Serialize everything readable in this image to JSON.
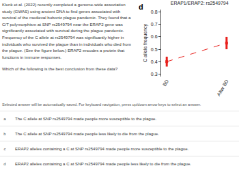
{
  "question": {
    "paragraphs": [
      "Klunk et al. (2022) recently completed a genome-wide association study (GWAS) using ancient DNA to find genes associated with survival of the medieval bubonic plague pandemic. They found that a C/T polymorphism at SNP rs2549794 near the ERAP2 gene was significantly associated with survival during the plague pandemic. Frequency of the C allele at rs2549794 was significantly higher in individuals who survived the plague than in individuals who died from the plague. (See the figure below.) ERAP2 encodes a protein that functions in immune responses.",
      "Which of the following is the best conclusion from these data?"
    ]
  },
  "figure": {
    "panel": "d"
  },
  "chart_data": {
    "type": "scatter",
    "title": "ERAP1/ERAP2: rs2549794",
    "y_label": "C allele frequency",
    "categories": [
      "BD",
      "After BD"
    ],
    "values": [
      0.4,
      0.55
    ],
    "errors": [
      0.04,
      0.05
    ],
    "color": "#e8201c",
    "marker": "square",
    "line_style": "dashed",
    "ylim": [
      0.28,
      0.82
    ],
    "yticks": [
      0.3,
      0.4,
      0.5,
      0.6,
      0.7,
      0.8
    ],
    "grid": false
  },
  "instruction": "Selected answer will be automatically saved. For keyboard navigation, press up/down arrow keys to select an answer.",
  "options": [
    {
      "letter": "a",
      "text": "The C allele at SNP rs2549794 made people more susceptible to the plague."
    },
    {
      "letter": "b",
      "text": "The C allele at SNP rs2549794 made people less likely to die from the plague."
    },
    {
      "letter": "c",
      "text": "ERAP2 alleles containing a C at SNP rs2549794 made people more susceptible to the plague."
    },
    {
      "letter": "d",
      "text": "ERAP2 alleles containing a C at SNP rs2549794 made people less likely to die from the plague."
    }
  ]
}
